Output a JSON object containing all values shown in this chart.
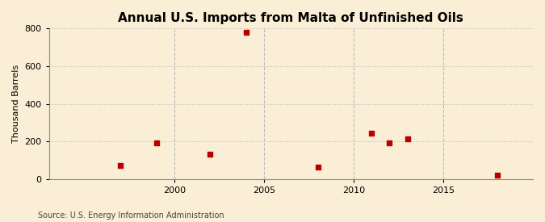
{
  "title": "Annual U.S. Imports from Malta of Unfinished Oils",
  "ylabel": "Thousand Barrels",
  "source": "Source: U.S. Energy Information Administration",
  "background_color": "#faefd6",
  "years": [
    1997,
    1999,
    2002,
    2004,
    2008,
    2011,
    2012,
    2013,
    2018
  ],
  "values": [
    70,
    190,
    130,
    780,
    65,
    245,
    190,
    215,
    20
  ],
  "marker_color": "#bb0000",
  "marker_size": 18,
  "xlim": [
    1993,
    2020
  ],
  "ylim": [
    0,
    800
  ],
  "yticks": [
    0,
    200,
    400,
    600,
    800
  ],
  "xticks": [
    2000,
    2005,
    2010,
    2015
  ],
  "grid_color": "#bbbbbb",
  "title_fontsize": 11,
  "label_fontsize": 8,
  "tick_fontsize": 8,
  "source_fontsize": 7
}
